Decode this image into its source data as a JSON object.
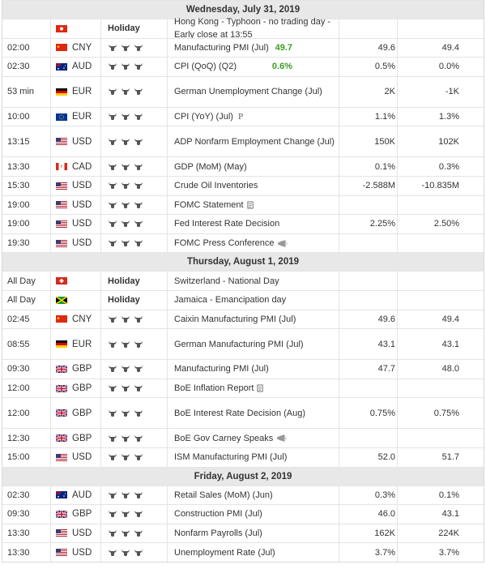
{
  "days": [
    {
      "label": "Wednesday, July 31, 2019",
      "events": [
        {
          "time": "",
          "currency": "",
          "flag": "hk",
          "holiday": "Holiday",
          "event": "Hong Kong - Typhoon - no trading day - Early close at 13:55",
          "actual": "",
          "forecast": "",
          "previous": ""
        },
        {
          "time": "02:00",
          "currency": "CNY",
          "flag": "cn",
          "event": "Manufacturing PMI (Jul)",
          "actual": "49.7",
          "actual_color": "green",
          "forecast": "49.6",
          "previous": "49.4"
        },
        {
          "time": "02:30",
          "currency": "AUD",
          "flag": "au",
          "event": "CPI (QoQ) (Q2)",
          "actual": "0.6%",
          "actual_color": "green",
          "forecast": "0.5%",
          "previous": "0.0%"
        },
        {
          "time": "53 min",
          "currency": "EUR",
          "flag": "de",
          "event": "German Unemployment Change (Jul)",
          "actual": "",
          "forecast": "2K",
          "previous": "-1K",
          "tall": true
        },
        {
          "time": "10:00",
          "currency": "EUR",
          "flag": "eu",
          "event": "CPI (YoY) (Jul)",
          "event_suffix": "P",
          "actual": "",
          "forecast": "1.1%",
          "previous": "1.3%"
        },
        {
          "time": "13:15",
          "currency": "USD",
          "flag": "us",
          "event": "ADP Nonfarm Employment Change (Jul)",
          "actual": "",
          "forecast": "150K",
          "previous": "102K",
          "tall": true
        },
        {
          "time": "13:30",
          "currency": "CAD",
          "flag": "ca",
          "event": "GDP (MoM) (May)",
          "actual": "",
          "forecast": "0.1%",
          "previous": "0.3%"
        },
        {
          "time": "15:30",
          "currency": "USD",
          "flag": "us",
          "event": "Crude Oil Inventories",
          "actual": "",
          "forecast": "-2.588M",
          "previous": "-10.835M"
        },
        {
          "time": "19:00",
          "currency": "USD",
          "flag": "us",
          "event": "FOMC Statement",
          "icon": "document-icon",
          "actual": "",
          "forecast": "",
          "previous": ""
        },
        {
          "time": "19:00",
          "currency": "USD",
          "flag": "us",
          "event": "Fed Interest Rate Decision",
          "actual": "",
          "forecast": "2.25%",
          "previous": "2.50%"
        },
        {
          "time": "19:30",
          "currency": "USD",
          "flag": "us",
          "event": "FOMC Press Conference",
          "icon": "speaker-icon",
          "actual": "",
          "forecast": "",
          "previous": ""
        }
      ]
    },
    {
      "label": "Thursday, August 1, 2019",
      "events": [
        {
          "time": "All Day",
          "currency": "",
          "flag": "ch",
          "holiday": "Holiday",
          "event": "Switzerland - National Day",
          "actual": "",
          "forecast": "",
          "previous": ""
        },
        {
          "time": "All Day",
          "currency": "",
          "flag": "jm",
          "holiday": "Holiday",
          "event": "Jamaica - Emancipation day",
          "actual": "",
          "forecast": "",
          "previous": ""
        },
        {
          "time": "02:45",
          "currency": "CNY",
          "flag": "cn",
          "event": "Caixin Manufacturing PMI (Jul)",
          "actual": "",
          "forecast": "49.6",
          "previous": "49.4"
        },
        {
          "time": "08:55",
          "currency": "EUR",
          "flag": "de",
          "event": "German Manufacturing PMI (Jul)",
          "actual": "",
          "forecast": "43.1",
          "previous": "43.1",
          "tall": true
        },
        {
          "time": "09:30",
          "currency": "GBP",
          "flag": "gb",
          "event": "Manufacturing PMI (Jul)",
          "actual": "",
          "forecast": "47.7",
          "previous": "48.0"
        },
        {
          "time": "12:00",
          "currency": "GBP",
          "flag": "gb",
          "event": "BoE Inflation Report",
          "icon": "document-icon",
          "actual": "",
          "forecast": "",
          "previous": ""
        },
        {
          "time": "12:00",
          "currency": "GBP",
          "flag": "gb",
          "event": "BoE Interest Rate Decision (Aug)",
          "actual": "",
          "forecast": "0.75%",
          "previous": "0.75%",
          "tall": true
        },
        {
          "time": "12:30",
          "currency": "GBP",
          "flag": "gb",
          "event": "BoE Gov Carney Speaks",
          "icon": "speaker-icon",
          "actual": "",
          "forecast": "",
          "previous": ""
        },
        {
          "time": "15:00",
          "currency": "USD",
          "flag": "us",
          "event": "ISM Manufacturing PMI (Jul)",
          "actual": "",
          "forecast": "52.0",
          "previous": "51.7"
        }
      ]
    },
    {
      "label": "Friday, August 2, 2019",
      "events": [
        {
          "time": "02:30",
          "currency": "AUD",
          "flag": "au",
          "event": "Retail Sales (MoM) (Jun)",
          "actual": "",
          "forecast": "0.3%",
          "previous": "0.1%"
        },
        {
          "time": "09:30",
          "currency": "GBP",
          "flag": "gb",
          "event": "Construction PMI (Jul)",
          "actual": "",
          "forecast": "46.0",
          "previous": "43.1"
        },
        {
          "time": "13:30",
          "currency": "USD",
          "flag": "us",
          "event": "Nonfarm Payrolls (Jul)",
          "actual": "",
          "forecast": "162K",
          "previous": "224K"
        },
        {
          "time": "13:30",
          "currency": "USD",
          "flag": "us",
          "event": "Unemployment Rate (Jul)",
          "actual": "",
          "forecast": "3.7%",
          "previous": "3.7%"
        }
      ]
    }
  ],
  "colors": {
    "actual_green": "#3a9d23",
    "day_header_bg": "#e8e8e8",
    "border": "#e4e4e4"
  }
}
